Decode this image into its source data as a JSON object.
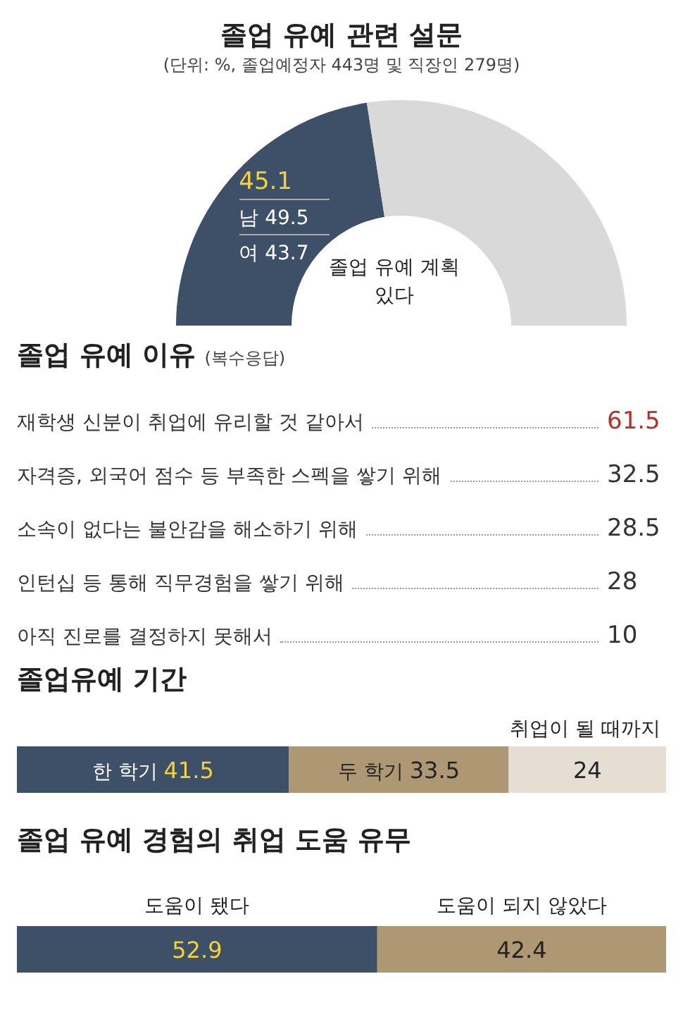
{
  "chart_data": [
    {
      "type": "donut",
      "title": "졸업 유예 관련 설문",
      "subtitle": "(단위: %, 졸업예정자 443명 및 직장인 279명)",
      "categories": [
        "졸업 유예 계획 있다",
        null
      ],
      "values": [
        45.1,
        54.9
      ],
      "colors": [
        "#3d5068",
        "#d9d9d9"
      ],
      "value_labels": [
        "45.1",
        null
      ],
      "annotations": [
        "남 49.5",
        "여 43.7"
      ]
    },
    {
      "type": "other",
      "title": "졸업 유예 이유",
      "subtitle": "(복수응답)",
      "categories": [
        "재학생 신분이 취업에 유리할 것 같아서",
        "자격증, 외국어 점수 등 부족한 스펙을 쌓기 위해",
        "소속이 없다는 불안감을 해소하기 위해",
        "인턴십 등 통해 직무경험을 쌓기 위해",
        "아직 진로를 결정하지 못해서"
      ],
      "values": [
        61.5,
        32.5,
        28.5,
        28,
        10
      ],
      "colors": [
        "#b5302a",
        "#333333",
        "#333333",
        "#333333",
        "#333333"
      ],
      "data_labels": true
    },
    {
      "type": "bar",
      "orientation": "horizontal",
      "stacked": true,
      "title": "졸업유예 기간",
      "categories": [
        null
      ],
      "data_labels": true,
      "series": [
        {
          "name": "한 학기",
          "color": "#3d5068",
          "values": [
            41.5
          ]
        },
        {
          "name": "두 학기",
          "color": "#ad9873",
          "values": [
            33.5
          ]
        },
        {
          "name": "취업이 될 때까지",
          "color": "#e4ded3",
          "values": [
            24
          ]
        }
      ]
    },
    {
      "type": "bar",
      "orientation": "horizontal",
      "stacked": true,
      "title": "졸업 유예 경험의 취업 도움 유무",
      "categories": [
        null
      ],
      "data_labels": true,
      "legend": "top",
      "series": [
        {
          "name": "도움이 됐다",
          "color": "#3d5068",
          "values": [
            52.9
          ]
        },
        {
          "name": "도움이 되지 않았다",
          "color": "#ad9873",
          "values": [
            42.4
          ]
        }
      ]
    }
  ]
}
